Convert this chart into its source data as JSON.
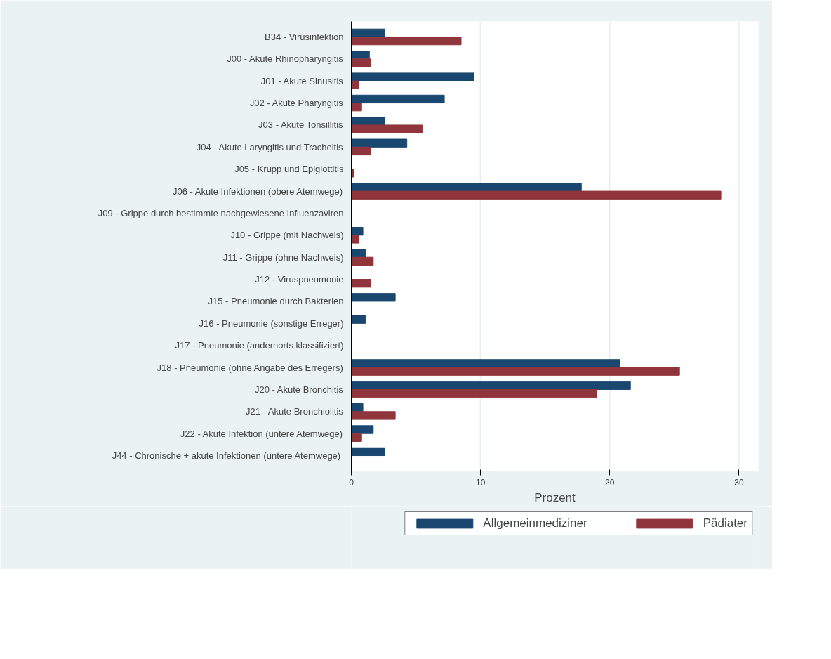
{
  "chart_data": {
    "type": "bar",
    "orientation": "horizontal",
    "xlabel": "Prozent",
    "categories": [
      "B34 - Virusinfektion",
      "J00 - Akute Rhinopharyngitis",
      "J01 - Akute Sinusitis",
      "J02 - Akute Pharyngitis",
      "J03 - Akute Tonsillitis",
      "J04 - Akute Laryngitis und Tracheitis",
      "J05 - Krupp und Epiglottitis",
      "J06 - Akute Infektionen (obere Atemwege)",
      "J09 - Grippe durch bestimmte nachgewiesene Influenzaviren",
      "J10 - Grippe (mit Nachweis)",
      "J11 - Grippe (ohne Nachweis)",
      "J12 - Viruspneumonie",
      "J15 - Pneumonie durch Bakterien",
      "J16 - Pneumonie (sonstige Erreger)",
      "J17 - Pneumonie (andernorts klassifiziert)",
      "J18 - Pneumonie (ohne Angabe des Erregers)",
      "J20 - Akute Bronchitis",
      "J21 - Akute Bronchiolitis",
      "J22 - Akute Infektion (untere Atemwege)",
      "J44 - Chronische + akute Infektionen  (untere Atemwege)"
    ],
    "series": [
      {
        "name": "Allgemeinmediziner",
        "color": "#1a476f",
        "values": [
          2.6,
          1.4,
          9.5,
          7.2,
          2.6,
          4.3,
          0,
          17.8,
          0,
          0.9,
          1.1,
          0,
          3.4,
          1.1,
          0,
          20.8,
          21.6,
          0.9,
          1.7,
          2.6
        ]
      },
      {
        "name": "Pädiater",
        "color": "#90353b",
        "values": [
          8.5,
          1.5,
          0.6,
          0.8,
          5.5,
          1.5,
          0.2,
          28.6,
          0,
          0.6,
          1.7,
          1.5,
          0,
          0,
          0,
          25.4,
          19.0,
          3.4,
          0.8,
          0
        ]
      }
    ],
    "xlim": [
      0,
      31.5
    ],
    "xticks": [
      0,
      10,
      20,
      30
    ],
    "grid": "x",
    "legend": "bottom"
  }
}
